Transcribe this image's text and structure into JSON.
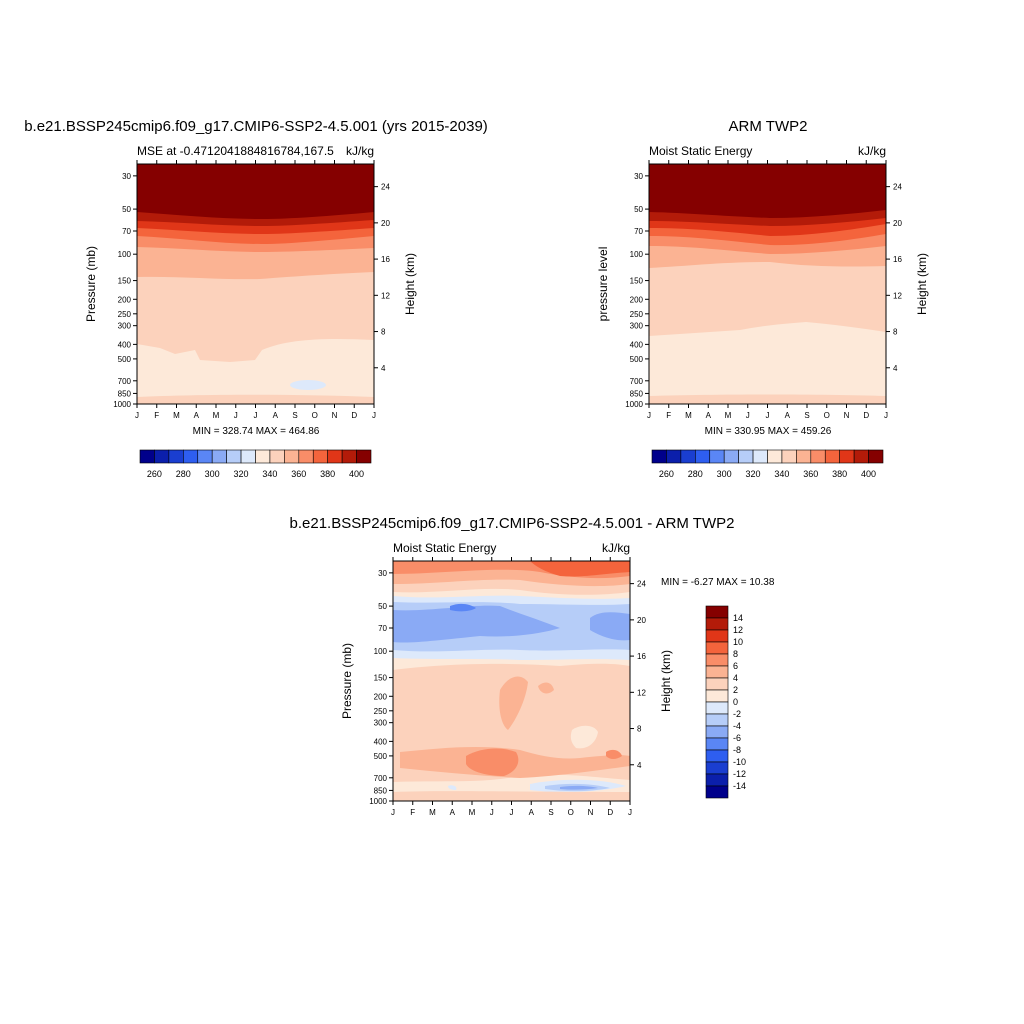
{
  "panels": [
    {
      "id": "model",
      "title": "b.e21.BSSP245cmip6.f09_g17.CMIP6-SSP2-4.5.001 (yrs 2015-2039)",
      "left_label": "MSE at -0.47120418848167⁠⁠⁠⁠⁠⁠⁠⁠⁠⁠⁠⁠⁠⁠⁠⁠⁠⁠⁠⁠⁠⁠⁠⁠⁠⁠⁠⁠⁠⁠⁠⁠⁠⁠⁠⁠⁠⁠⁠⁠⁠⁠⁠⁠⁠⁠⁠⁠⁠⁠⁠⁠⁠⁠⁠⁠⁠⁠⁠⁠⁠⁠⁠⁠⁠⁠⁠⁠⁠⁠⁠⁠⁠⁠⁠⁠⁠⁠⁠⁠⁠⁠⁠⁠⁠⁠⁠⁠⁠⁠⁠⁠⁠⁠⁠⁠⁠⁠⁠⁠⁠⁠⁠⁠⁠⁠⁠⁠⁠⁠⁠⁠⁠⁠⁠⁠⁠⁠⁠⁠",
      "left_label_plain": "MSE at -0.4712041884816784,167.5",
      "units": "kJ/kg",
      "ylabel": "Pressure (mb)",
      "y2label": "Height (km)",
      "stats": "MIN = 328.74 MAX = 464.86"
    },
    {
      "id": "obs",
      "title": "ARM TWP2",
      "left_label_plain": "Moist Static Energy",
      "units": "kJ/kg",
      "ylabel": "pressure level",
      "y2label": "Height (km)",
      "stats": "MIN = 330.95 MAX = 459.26"
    },
    {
      "id": "diff",
      "title": "b.e21.BSSP245cmip6.f09_g17.CMIP6-SSP2-4.5.001 - ARM TWP2",
      "left_label_plain": "Moist Static Energy",
      "units": "kJ/kg",
      "ylabel": "Pressure (mb)",
      "y2label": "Height (km)",
      "stats": "MIN =  -6.27 MAX =  10.38"
    }
  ],
  "chart_data": [
    {
      "type": "heatmap",
      "title": "b.e21.BSSP245cmip6.f09_g17.CMIP6-SSP2-4.5.001 (yrs 2015-2039)",
      "subtitle": "MSE at -0.4712041884816784,167.5",
      "xlabel": "",
      "ylabel": "Pressure (mb)",
      "y2label": "Height (km)",
      "x_tick_labels": [
        "J",
        "F",
        "M",
        "A",
        "M",
        "J",
        "J",
        "A",
        "S",
        "O",
        "N",
        "D",
        "J"
      ],
      "y_tick_labels": [
        "30",
        "50",
        "70",
        "100",
        "150",
        "200",
        "250",
        "300",
        "400",
        "500",
        "700",
        "850",
        "1000"
      ],
      "y2_tick_labels": [
        "24",
        "20",
        "16",
        "12",
        "8",
        "4"
      ],
      "yscale": "log",
      "ylim": [
        1000,
        25
      ],
      "colorbar_levels": [
        260,
        270,
        280,
        290,
        300,
        310,
        320,
        330,
        340,
        350,
        360,
        370,
        380,
        390,
        400
      ],
      "colorbar_tick_labels": [
        "260",
        "280",
        "300",
        "320",
        "340",
        "360",
        "380",
        "400"
      ],
      "min": 328.74,
      "max": 464.86
    },
    {
      "type": "heatmap",
      "title": "ARM TWP2",
      "subtitle": "Moist Static Energy",
      "ylabel": "pressure level",
      "y2label": "Height (km)",
      "x_tick_labels": [
        "J",
        "F",
        "M",
        "A",
        "M",
        "J",
        "J",
        "A",
        "S",
        "O",
        "N",
        "D",
        "J"
      ],
      "y_tick_labels": [
        "30",
        "50",
        "70",
        "100",
        "150",
        "200",
        "250",
        "300",
        "400",
        "500",
        "700",
        "850",
        "1000"
      ],
      "y2_tick_labels": [
        "24",
        "20",
        "16",
        "12",
        "8",
        "4"
      ],
      "colorbar_levels": [
        260,
        270,
        280,
        290,
        300,
        310,
        320,
        330,
        340,
        350,
        360,
        370,
        380,
        390,
        400
      ],
      "colorbar_tick_labels": [
        "260",
        "280",
        "300",
        "320",
        "340",
        "360",
        "380",
        "400"
      ],
      "min": 330.95,
      "max": 459.26
    },
    {
      "type": "heatmap",
      "title": "b.e21.BSSP245cmip6.f09_g17.CMIP6-SSP2-4.5.001 - ARM TWP2",
      "subtitle": "Moist Static Energy",
      "ylabel": "Pressure (mb)",
      "y2label": "Height (km)",
      "x_tick_labels": [
        "J",
        "F",
        "M",
        "A",
        "M",
        "J",
        "J",
        "A",
        "S",
        "O",
        "N",
        "D",
        "J"
      ],
      "y_tick_labels": [
        "30",
        "50",
        "70",
        "100",
        "150",
        "200",
        "250",
        "300",
        "400",
        "500",
        "700",
        "850",
        "1000"
      ],
      "y2_tick_labels": [
        "24",
        "20",
        "16",
        "12",
        "8",
        "4"
      ],
      "colorbar_levels": [
        -14,
        -12,
        -10,
        -8,
        -6,
        -4,
        -2,
        0,
        2,
        4,
        6,
        8,
        10,
        12,
        14
      ],
      "colorbar_tick_labels": [
        "14",
        "12",
        "10",
        "8",
        "6",
        "4",
        "2",
        "0",
        "-2",
        "-4",
        "-6",
        "-8",
        "-10",
        "-12",
        "-14"
      ],
      "min": -6.27,
      "max": 10.38
    }
  ],
  "colors": {
    "abs_scale": [
      "#00008b",
      "#0b1fab",
      "#1a3ed0",
      "#2e5ef0",
      "#5a86f5",
      "#8aaaf5",
      "#b6cdf8",
      "#dde9fb",
      "#fde9d9",
      "#fcd2bc",
      "#fbb393",
      "#f98d68",
      "#f4643c",
      "#e03618",
      "#b31b09",
      "#850000"
    ],
    "diff_scale": [
      "#00008b",
      "#0b1fab",
      "#1a3ed0",
      "#2e5ef0",
      "#5a86f5",
      "#8aaaf5",
      "#b6cdf8",
      "#dde9fb",
      "#fde9d9",
      "#fcd2bc",
      "#fbb393",
      "#f98d68",
      "#f4643c",
      "#e03618",
      "#b31b09",
      "#850000"
    ]
  }
}
